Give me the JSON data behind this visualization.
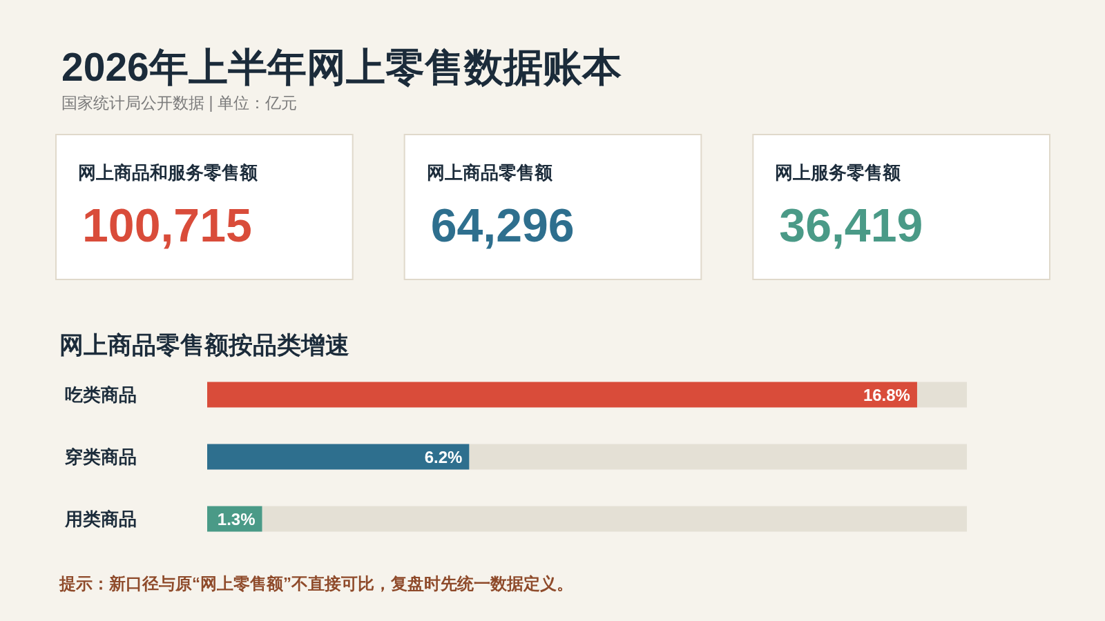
{
  "chart_data": [
    {
      "type": "other",
      "title": "2026年上半年网上零售数据账本",
      "subtitle": "国家统计局公开数据 | 单位：亿元",
      "categories": [
        "网上商品和服务零售额",
        "网上商品零售额",
        "网上服务零售额"
      ],
      "value_labels": [
        "100,715",
        "64,296",
        "36,419"
      ],
      "colors": [
        "#d94c3a",
        "#2e6f8e",
        "#4a9a87"
      ]
    },
    {
      "type": "bar",
      "orientation": "horizontal",
      "title": "网上商品零售额按品类增速",
      "categories": [
        "吃类商品",
        "穿类商品",
        "用类商品"
      ],
      "values": [
        16.8,
        6.2,
        1.3
      ],
      "value_labels": [
        "16.8%",
        "6.2%",
        "1.3%"
      ],
      "colors": [
        "#d94c3a",
        "#2e6f8e",
        "#4a9a87"
      ],
      "tick_labels": "y",
      "annotations": [
        "提示：新口径与原“网上零售额”不直接可比，复盘时先统一数据定义。"
      ]
    }
  ]
}
